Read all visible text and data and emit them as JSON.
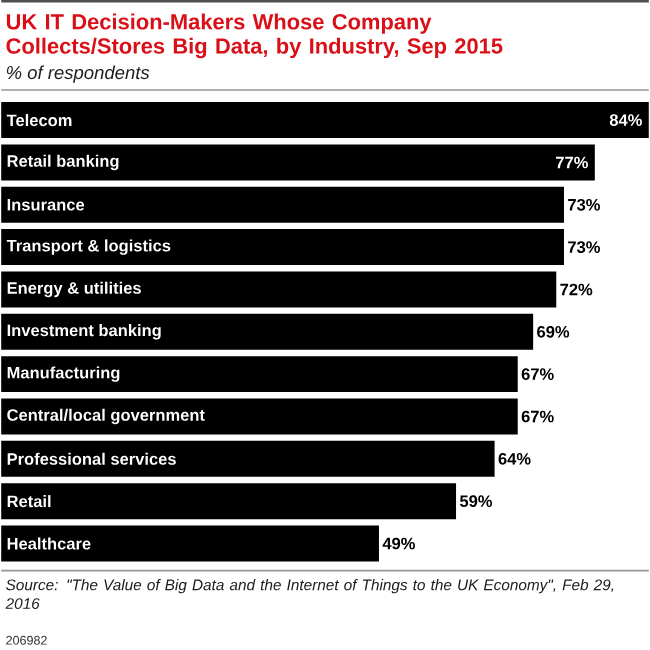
{
  "chart_data": {
    "type": "bar",
    "orientation": "horizontal",
    "title": "UK IT Decision-Makers Whose Company Collects/Stores Big Data, by Industry, Sep 2015",
    "subtitle": "% of respondents",
    "categories": [
      "Telecom",
      "Retail banking",
      "Insurance",
      "Transport & logistics",
      "Energy & utilities",
      "Investment banking",
      "Manufacturing",
      "Central/local government",
      "Professional services",
      "Retail",
      "Healthcare"
    ],
    "values": [
      84,
      77,
      73,
      73,
      72,
      69,
      67,
      67,
      64,
      59,
      49
    ],
    "value_labels": [
      "84%",
      "77%",
      "73%",
      "73%",
      "72%",
      "69%",
      "67%",
      "67%",
      "64%",
      "59%",
      "49%"
    ],
    "color": "#000000",
    "annotations": [
      "Source: \"The Value of Big Data and the Internet of Things to the UK Economy\", Feb 29, 2016",
      "206982"
    ]
  }
}
